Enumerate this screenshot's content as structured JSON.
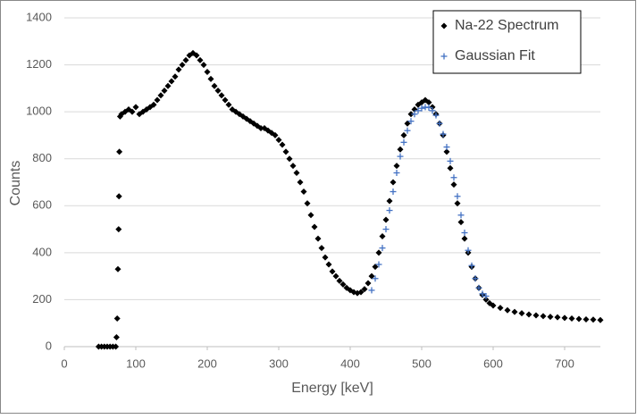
{
  "chart_data": {
    "type": "scatter",
    "x_label": "Energy [keV]",
    "y_label": "Counts",
    "xlim": [
      0,
      750
    ],
    "xticks": [
      0,
      100,
      200,
      300,
      400,
      500,
      600,
      700
    ],
    "ylim": [
      0,
      1400
    ],
    "yticks": [
      0,
      200,
      400,
      600,
      800,
      1000,
      1200,
      1400
    ],
    "grid": true,
    "legend": "top-right",
    "series": [
      {
        "name": "Na-22 Spectrum",
        "color": "#000000",
        "marker": "diamond",
        "x": [
          48,
          52,
          56,
          60,
          64,
          68,
          72,
          73,
          74,
          75,
          76,
          76.5,
          77,
          78,
          80,
          85,
          90,
          95,
          100,
          105,
          110,
          115,
          120,
          125,
          130,
          135,
          140,
          145,
          150,
          155,
          160,
          165,
          170,
          175,
          180,
          185,
          190,
          195,
          200,
          205,
          210,
          215,
          220,
          225,
          230,
          235,
          240,
          245,
          250,
          255,
          260,
          265,
          270,
          275,
          280,
          285,
          290,
          295,
          300,
          305,
          310,
          315,
          320,
          325,
          330,
          335,
          340,
          345,
          350,
          355,
          360,
          365,
          370,
          375,
          380,
          385,
          390,
          395,
          400,
          405,
          410,
          415,
          420,
          425,
          430,
          435,
          440,
          445,
          450,
          455,
          460,
          465,
          470,
          475,
          480,
          485,
          490,
          495,
          500,
          505,
          510,
          515,
          520,
          525,
          530,
          535,
          540,
          545,
          550,
          555,
          560,
          565,
          570,
          575,
          580,
          585,
          590,
          595,
          600,
          610,
          620,
          630,
          640,
          650,
          660,
          670,
          680,
          690,
          700,
          710,
          720,
          730,
          740,
          750
        ],
        "values": [
          0,
          0,
          0,
          0,
          0,
          0,
          0,
          40,
          120,
          330,
          500,
          640,
          830,
          980,
          990,
          1000,
          1010,
          1000,
          1020,
          990,
          1000,
          1010,
          1020,
          1030,
          1050,
          1070,
          1090,
          1110,
          1130,
          1150,
          1180,
          1200,
          1220,
          1240,
          1250,
          1240,
          1220,
          1200,
          1170,
          1140,
          1110,
          1090,
          1070,
          1050,
          1030,
          1010,
          1000,
          990,
          980,
          970,
          960,
          950,
          940,
          930,
          930,
          920,
          910,
          900,
          880,
          860,
          830,
          800,
          770,
          740,
          700,
          660,
          610,
          560,
          510,
          460,
          420,
          380,
          350,
          320,
          300,
          280,
          265,
          250,
          240,
          232,
          228,
          232,
          245,
          270,
          300,
          340,
          400,
          470,
          540,
          620,
          700,
          770,
          840,
          900,
          950,
          990,
          1010,
          1030,
          1040,
          1050,
          1040,
          1020,
          990,
          950,
          900,
          830,
          760,
          690,
          610,
          530,
          460,
          400,
          340,
          290,
          250,
          220,
          200,
          185,
          175,
          165,
          155,
          148,
          142,
          137,
          133,
          130,
          127,
          125,
          122,
          120,
          118,
          116,
          115,
          113
        ]
      },
      {
        "name": "Gaussian Fit",
        "color": "#4472c4",
        "marker": "plus",
        "x": [
          430,
          435,
          440,
          445,
          450,
          455,
          460,
          465,
          470,
          475,
          480,
          485,
          490,
          495,
          500,
          505,
          510,
          515,
          520,
          525,
          530,
          535,
          540,
          545,
          550,
          555,
          560,
          565,
          570,
          575,
          580,
          585,
          590
        ],
        "values": [
          240,
          290,
          350,
          420,
          500,
          580,
          660,
          740,
          810,
          870,
          920,
          960,
          990,
          1005,
          1015,
          1020,
          1018,
          1005,
          985,
          950,
          905,
          850,
          790,
          720,
          640,
          560,
          485,
          410,
          345,
          290,
          250,
          225,
          215
        ]
      }
    ]
  }
}
